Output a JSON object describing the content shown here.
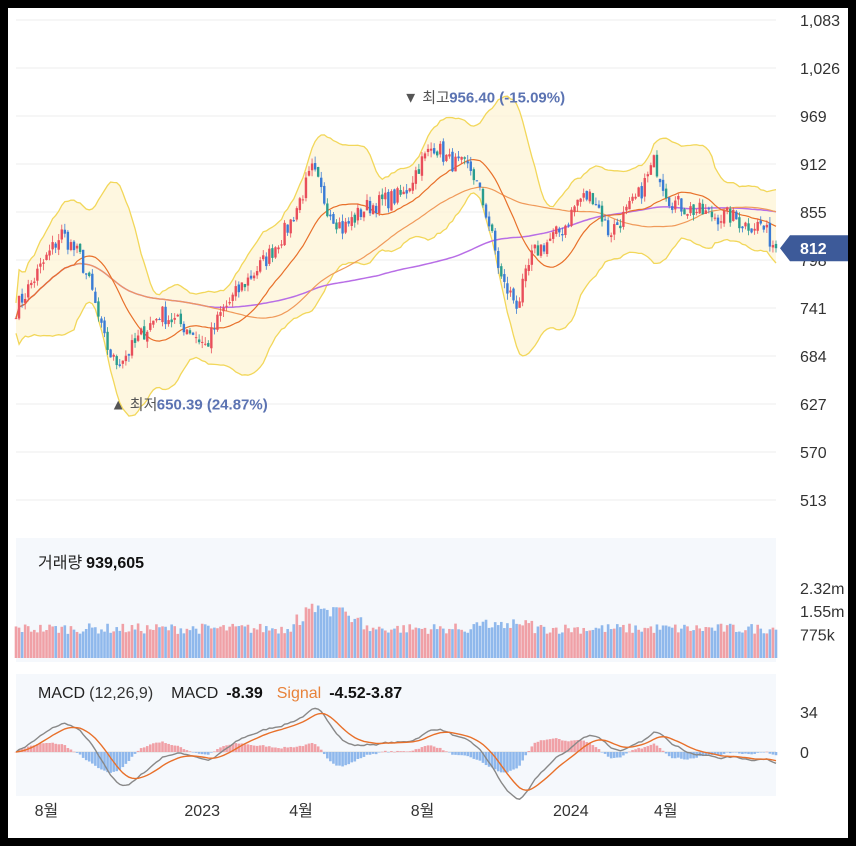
{
  "price_axis": {
    "ticks": [
      "1,083",
      "1,026",
      "969",
      "912",
      "855",
      "798",
      "741",
      "684",
      "627",
      "570",
      "513"
    ]
  },
  "current_price": "812",
  "high_marker": {
    "label": "최고",
    "value": "956.40",
    "change": "(-15.09%)"
  },
  "low_marker": {
    "label": "최저",
    "value": "650.39",
    "change": "(24.87%)"
  },
  "volume": {
    "label": "거래량",
    "value": "939,605",
    "ticks": [
      "2.32m",
      "1.55m",
      "775k"
    ]
  },
  "macd": {
    "label": "MACD",
    "params": "(12,26,9)",
    "macd_label": "MACD",
    "macd_value": "-8.39",
    "signal_label": "Signal",
    "signal_values": "-4.52-3.87",
    "ticks": [
      "34",
      "0"
    ]
  },
  "x_axis": {
    "labels": [
      "8월",
      "2023",
      "4월",
      "8월",
      "2024",
      "4월"
    ]
  },
  "colors": {
    "up": "#e94e5a",
    "down": "#3a7bd5",
    "bollinger": "#f2d75a",
    "ma_long": "#b86ee6",
    "ma_mid": "#f09a5a",
    "ma_short": "#e8702a",
    "current_tag": "#3d5a99",
    "vol_up": "#f0a0a6",
    "vol_down": "#8fb8ec"
  },
  "chart_data": {
    "type": "candlestick",
    "y_range": [
      513,
      1083
    ],
    "x_labels": [
      "8월",
      "2023",
      "4월",
      "8월",
      "2024",
      "4월"
    ],
    "close_path": [
      [
        0,
        740
      ],
      [
        0.03,
        785
      ],
      [
        0.06,
        830
      ],
      [
        0.085,
        800
      ],
      [
        0.1,
        760
      ],
      [
        0.115,
        705
      ],
      [
        0.13,
        675
      ],
      [
        0.15,
        690
      ],
      [
        0.17,
        715
      ],
      [
        0.19,
        735
      ],
      [
        0.21,
        725
      ],
      [
        0.23,
        715
      ],
      [
        0.25,
        695
      ],
      [
        0.27,
        735
      ],
      [
        0.3,
        770
      ],
      [
        0.33,
        800
      ],
      [
        0.36,
        840
      ],
      [
        0.39,
        905
      ],
      [
        0.41,
        860
      ],
      [
        0.43,
        835
      ],
      [
        0.46,
        860
      ],
      [
        0.49,
        870
      ],
      [
        0.51,
        875
      ],
      [
        0.53,
        910
      ],
      [
        0.55,
        935
      ],
      [
        0.57,
        915
      ],
      [
        0.6,
        905
      ],
      [
        0.62,
        850
      ],
      [
        0.64,
        770
      ],
      [
        0.66,
        745
      ],
      [
        0.68,
        805
      ],
      [
        0.7,
        820
      ],
      [
        0.72,
        835
      ],
      [
        0.74,
        870
      ],
      [
        0.76,
        875
      ],
      [
        0.78,
        830
      ],
      [
        0.8,
        850
      ],
      [
        0.82,
        875
      ],
      [
        0.84,
        915
      ],
      [
        0.86,
        870
      ],
      [
        0.88,
        860
      ],
      [
        0.9,
        855
      ],
      [
        0.92,
        850
      ],
      [
        0.94,
        850
      ],
      [
        0.96,
        840
      ],
      [
        0.98,
        840
      ],
      [
        1.0,
        812
      ]
    ],
    "high": {
      "value": 956.4,
      "change_pct": -15.09
    },
    "low": {
      "value": 650.39,
      "change_pct": 24.87
    },
    "last": 812,
    "volume_last": 939605,
    "macd": {
      "params": [
        12,
        26,
        9
      ],
      "macd": -8.39,
      "signal": "-4.52-3.87"
    }
  }
}
